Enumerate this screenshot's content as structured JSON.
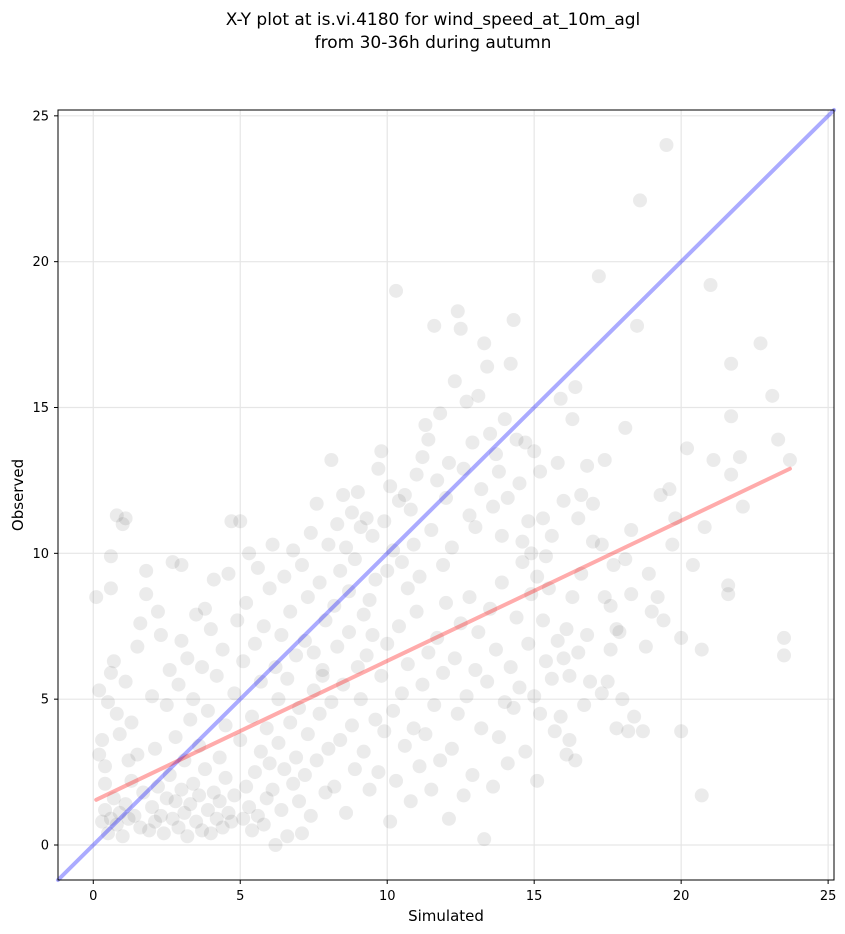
{
  "chart_data": {
    "type": "scatter",
    "title_line1": "X-Y plot at is.vi.4180 for wind_speed_at_10m_agl",
    "title_line2": "from 30-36h during autumn",
    "xlabel": "Simulated",
    "ylabel": "Observed",
    "xlim": [
      -1.2,
      25.2
    ],
    "ylim": [
      -1.2,
      25.2
    ],
    "x_ticks": [
      0,
      5,
      10,
      15,
      20,
      25
    ],
    "y_ticks": [
      0,
      5,
      10,
      15,
      20,
      25
    ],
    "grid": true,
    "point_color": "#000000",
    "point_opacity": 0.08,
    "identity_line": {
      "x": [
        -1.2,
        25.2
      ],
      "y": [
        -1.2,
        25.2
      ],
      "color": "#0000ff"
    },
    "regression_line": {
      "x": [
        0.1,
        23.7
      ],
      "y": [
        1.55,
        12.9
      ],
      "color": "#ff0000"
    },
    "points": [
      [
        0.1,
        8.5
      ],
      [
        0.6,
        9.9
      ],
      [
        0.6,
        8.8
      ],
      [
        0.8,
        11.3
      ],
      [
        1.0,
        11.0
      ],
      [
        1.1,
        11.2
      ],
      [
        0.2,
        5.3
      ],
      [
        0.3,
        3.6
      ],
      [
        0.4,
        2.7
      ],
      [
        0.2,
        3.1
      ],
      [
        0.5,
        4.9
      ],
      [
        0.6,
        5.9
      ],
      [
        0.7,
        6.3
      ],
      [
        0.8,
        4.5
      ],
      [
        0.9,
        3.8
      ],
      [
        0.3,
        0.8
      ],
      [
        0.4,
        1.2
      ],
      [
        0.5,
        0.4
      ],
      [
        0.6,
        0.9
      ],
      [
        0.7,
        1.6
      ],
      [
        0.8,
        0.7
      ],
      [
        0.9,
        1.1
      ],
      [
        1.0,
        0.3
      ],
      [
        1.1,
        1.4
      ],
      [
        1.2,
        0.9
      ],
      [
        1.3,
        2.2
      ],
      [
        1.4,
        1.0
      ],
      [
        1.5,
        3.1
      ],
      [
        1.6,
        0.6
      ],
      [
        1.7,
        1.8
      ],
      [
        1.1,
        5.6
      ],
      [
        1.3,
        4.2
      ],
      [
        1.5,
        6.8
      ],
      [
        1.6,
        7.6
      ],
      [
        1.8,
        9.4
      ],
      [
        1.8,
        8.6
      ],
      [
        2.0,
        5.1
      ],
      [
        2.1,
        3.3
      ],
      [
        2.2,
        8.0
      ],
      [
        2.3,
        7.2
      ],
      [
        1.9,
        0.5
      ],
      [
        2.0,
        1.3
      ],
      [
        2.1,
        0.8
      ],
      [
        2.2,
        2.0
      ],
      [
        2.3,
        1.0
      ],
      [
        2.4,
        0.4
      ],
      [
        2.5,
        1.6
      ],
      [
        2.6,
        2.4
      ],
      [
        2.7,
        0.9
      ],
      [
        2.8,
        1.5
      ],
      [
        2.5,
        4.8
      ],
      [
        2.6,
        6.0
      ],
      [
        2.7,
        9.7
      ],
      [
        2.8,
        3.7
      ],
      [
        2.9,
        5.5
      ],
      [
        3.0,
        7.0
      ],
      [
        3.0,
        9.6
      ],
      [
        3.1,
        2.9
      ],
      [
        3.2,
        6.4
      ],
      [
        3.3,
        4.3
      ],
      [
        2.9,
        0.6
      ],
      [
        3.0,
        1.9
      ],
      [
        3.1,
        1.1
      ],
      [
        3.2,
        0.3
      ],
      [
        3.3,
        1.4
      ],
      [
        3.4,
        2.1
      ],
      [
        3.5,
        0.8
      ],
      [
        3.6,
        1.7
      ],
      [
        3.7,
        0.5
      ],
      [
        3.8,
        2.6
      ],
      [
        3.4,
        5.0
      ],
      [
        3.5,
        7.9
      ],
      [
        3.6,
        3.4
      ],
      [
        3.7,
        6.1
      ],
      [
        3.8,
        8.1
      ],
      [
        3.9,
        4.6
      ],
      [
        4.0,
        7.4
      ],
      [
        4.1,
        9.1
      ],
      [
        4.2,
        5.8
      ],
      [
        4.3,
        3.0
      ],
      [
        3.9,
        1.2
      ],
      [
        4.0,
        0.4
      ],
      [
        4.1,
        1.8
      ],
      [
        4.2,
        0.9
      ],
      [
        4.3,
        1.5
      ],
      [
        4.4,
        0.6
      ],
      [
        4.5,
        2.3
      ],
      [
        4.6,
        1.1
      ],
      [
        4.7,
        0.8
      ],
      [
        4.8,
        1.7
      ],
      [
        4.4,
        6.7
      ],
      [
        4.5,
        4.1
      ],
      [
        4.6,
        9.3
      ],
      [
        4.7,
        11.1
      ],
      [
        4.8,
        5.2
      ],
      [
        4.9,
        7.7
      ],
      [
        5.0,
        11.1
      ],
      [
        5.0,
        3.6
      ],
      [
        5.1,
        6.3
      ],
      [
        5.2,
        8.3
      ],
      [
        5.1,
        0.9
      ],
      [
        5.2,
        2.0
      ],
      [
        5.3,
        1.3
      ],
      [
        5.4,
        0.5
      ],
      [
        5.5,
        2.5
      ],
      [
        5.6,
        1.0
      ],
      [
        5.7,
        3.2
      ],
      [
        5.8,
        0.7
      ],
      [
        5.9,
        1.6
      ],
      [
        6.0,
        2.8
      ],
      [
        5.3,
        10.0
      ],
      [
        5.4,
        4.4
      ],
      [
        5.5,
        6.9
      ],
      [
        5.6,
        9.5
      ],
      [
        5.7,
        5.6
      ],
      [
        5.8,
        7.5
      ],
      [
        5.9,
        4.0
      ],
      [
        6.0,
        8.8
      ],
      [
        6.1,
        10.3
      ],
      [
        6.2,
        6.1
      ],
      [
        6.1,
        1.9
      ],
      [
        6.2,
        0.0
      ],
      [
        6.3,
        3.5
      ],
      [
        6.4,
        1.2
      ],
      [
        6.5,
        2.6
      ],
      [
        6.6,
        0.3
      ],
      [
        6.7,
        4.2
      ],
      [
        6.8,
        2.1
      ],
      [
        6.9,
        3.0
      ],
      [
        7.0,
        1.5
      ],
      [
        6.3,
        5.0
      ],
      [
        6.4,
        7.2
      ],
      [
        6.5,
        9.2
      ],
      [
        6.6,
        5.7
      ],
      [
        6.7,
        8.0
      ],
      [
        6.8,
        10.1
      ],
      [
        6.9,
        6.5
      ],
      [
        7.0,
        4.7
      ],
      [
        7.1,
        9.6
      ],
      [
        7.2,
        7.0
      ],
      [
        7.1,
        0.4
      ],
      [
        7.2,
        2.4
      ],
      [
        7.3,
        3.8
      ],
      [
        7.4,
        1.0
      ],
      [
        7.5,
        5.3
      ],
      [
        7.6,
        2.9
      ],
      [
        7.7,
        4.5
      ],
      [
        7.8,
        6.0
      ],
      [
        7.9,
        1.8
      ],
      [
        8.0,
        3.3
      ],
      [
        7.3,
        8.5
      ],
      [
        7.4,
        10.7
      ],
      [
        7.5,
        6.6
      ],
      [
        7.6,
        11.7
      ],
      [
        7.7,
        9.0
      ],
      [
        7.8,
        5.8
      ],
      [
        7.9,
        7.7
      ],
      [
        8.0,
        10.3
      ],
      [
        8.1,
        13.2
      ],
      [
        8.2,
        8.2
      ],
      [
        8.1,
        4.9
      ],
      [
        8.2,
        2.0
      ],
      [
        8.3,
        6.8
      ],
      [
        8.4,
        3.6
      ],
      [
        8.5,
        5.5
      ],
      [
        8.6,
        1.1
      ],
      [
        8.7,
        7.3
      ],
      [
        8.8,
        4.1
      ],
      [
        8.9,
        2.6
      ],
      [
        9.0,
        6.1
      ],
      [
        8.3,
        11.0
      ],
      [
        8.4,
        9.4
      ],
      [
        8.5,
        12.0
      ],
      [
        8.6,
        10.2
      ],
      [
        8.7,
        8.7
      ],
      [
        8.8,
        11.4
      ],
      [
        8.9,
        9.8
      ],
      [
        9.0,
        12.1
      ],
      [
        9.1,
        10.9
      ],
      [
        9.2,
        7.9
      ],
      [
        9.1,
        5.0
      ],
      [
        9.2,
        3.2
      ],
      [
        9.3,
        6.5
      ],
      [
        9.4,
        1.9
      ],
      [
        9.5,
        7.2
      ],
      [
        9.6,
        4.3
      ],
      [
        9.7,
        2.5
      ],
      [
        9.8,
        5.8
      ],
      [
        9.9,
        3.9
      ],
      [
        10.0,
        6.9
      ],
      [
        9.3,
        11.2
      ],
      [
        9.4,
        8.4
      ],
      [
        9.5,
        10.6
      ],
      [
        9.6,
        9.1
      ],
      [
        9.7,
        12.9
      ],
      [
        9.8,
        13.5
      ],
      [
        9.9,
        11.1
      ],
      [
        10.0,
        9.4
      ],
      [
        10.1,
        12.3
      ],
      [
        10.2,
        10.1
      ],
      [
        10.1,
        0.8
      ],
      [
        10.2,
        4.6
      ],
      [
        10.3,
        2.2
      ],
      [
        10.4,
        7.5
      ],
      [
        10.5,
        5.2
      ],
      [
        10.6,
        3.4
      ],
      [
        10.7,
        6.2
      ],
      [
        10.8,
        1.5
      ],
      [
        10.9,
        4.0
      ],
      [
        11.0,
        8.0
      ],
      [
        10.3,
        19.0
      ],
      [
        10.4,
        11.8
      ],
      [
        10.5,
        9.7
      ],
      [
        10.6,
        12.0
      ],
      [
        10.7,
        8.8
      ],
      [
        10.8,
        11.5
      ],
      [
        10.9,
        10.3
      ],
      [
        11.0,
        12.7
      ],
      [
        11.1,
        9.2
      ],
      [
        11.2,
        13.3
      ],
      [
        11.1,
        2.7
      ],
      [
        11.2,
        5.5
      ],
      [
        11.3,
        3.8
      ],
      [
        11.4,
        6.6
      ],
      [
        11.5,
        1.9
      ],
      [
        11.6,
        4.8
      ],
      [
        11.7,
        7.1
      ],
      [
        11.8,
        2.9
      ],
      [
        11.9,
        5.9
      ],
      [
        12.0,
        8.3
      ],
      [
        11.3,
        14.4
      ],
      [
        11.4,
        13.9
      ],
      [
        11.5,
        10.8
      ],
      [
        11.6,
        17.8
      ],
      [
        11.7,
        12.5
      ],
      [
        11.8,
        14.8
      ],
      [
        11.9,
        9.6
      ],
      [
        12.0,
        11.9
      ],
      [
        12.1,
        13.1
      ],
      [
        12.2,
        10.2
      ],
      [
        12.1,
        0.9
      ],
      [
        12.2,
        3.3
      ],
      [
        12.3,
        6.4
      ],
      [
        12.4,
        4.5
      ],
      [
        12.5,
        7.6
      ],
      [
        12.6,
        1.7
      ],
      [
        12.7,
        5.1
      ],
      [
        12.8,
        8.5
      ],
      [
        12.9,
        2.4
      ],
      [
        13.0,
        6.0
      ],
      [
        12.3,
        15.9
      ],
      [
        12.4,
        18.3
      ],
      [
        12.5,
        17.7
      ],
      [
        12.6,
        12.9
      ],
      [
        12.7,
        15.2
      ],
      [
        12.8,
        11.3
      ],
      [
        12.9,
        13.8
      ],
      [
        13.0,
        10.9
      ],
      [
        13.1,
        15.4
      ],
      [
        13.2,
        12.2
      ],
      [
        13.1,
        7.3
      ],
      [
        13.2,
        4.0
      ],
      [
        13.3,
        0.2
      ],
      [
        13.4,
        5.6
      ],
      [
        13.5,
        8.1
      ],
      [
        13.6,
        2.0
      ],
      [
        13.7,
        6.7
      ],
      [
        13.8,
        3.7
      ],
      [
        13.9,
        9.0
      ],
      [
        14.0,
        4.9
      ],
      [
        13.3,
        17.2
      ],
      [
        13.4,
        16.4
      ],
      [
        13.5,
        14.1
      ],
      [
        13.6,
        11.6
      ],
      [
        13.7,
        13.4
      ],
      [
        13.8,
        12.8
      ],
      [
        13.9,
        10.6
      ],
      [
        14.0,
        14.6
      ],
      [
        14.1,
        11.9
      ],
      [
        14.2,
        16.5
      ],
      [
        14.1,
        2.8
      ],
      [
        14.2,
        6.1
      ],
      [
        14.3,
        4.7
      ],
      [
        14.4,
        7.8
      ],
      [
        14.5,
        5.4
      ],
      [
        14.6,
        9.7
      ],
      [
        14.7,
        3.2
      ],
      [
        14.8,
        6.9
      ],
      [
        14.9,
        8.6
      ],
      [
        15.0,
        5.1
      ],
      [
        14.3,
        18.0
      ],
      [
        14.4,
        13.9
      ],
      [
        14.5,
        12.4
      ],
      [
        14.6,
        10.4
      ],
      [
        14.7,
        13.8
      ],
      [
        14.8,
        11.1
      ],
      [
        14.9,
        10.0
      ],
      [
        15.0,
        13.5
      ],
      [
        15.1,
        9.2
      ],
      [
        15.2,
        12.8
      ],
      [
        15.1,
        2.2
      ],
      [
        15.2,
        4.5
      ],
      [
        15.3,
        7.7
      ],
      [
        15.4,
        6.3
      ],
      [
        15.5,
        8.8
      ],
      [
        15.6,
        5.7
      ],
      [
        15.7,
        3.9
      ],
      [
        15.8,
        7.0
      ],
      [
        15.9,
        4.4
      ],
      [
        16.0,
        6.4
      ],
      [
        15.3,
        11.2
      ],
      [
        15.4,
        9.9
      ],
      [
        15.6,
        10.6
      ],
      [
        15.8,
        13.1
      ],
      [
        15.9,
        15.3
      ],
      [
        16.0,
        11.8
      ],
      [
        16.1,
        7.4
      ],
      [
        16.2,
        3.6
      ],
      [
        16.3,
        14.6
      ],
      [
        16.4,
        15.7
      ],
      [
        16.1,
        3.1
      ],
      [
        16.2,
        5.8
      ],
      [
        16.3,
        8.5
      ],
      [
        16.4,
        2.9
      ],
      [
        16.5,
        6.6
      ],
      [
        16.6,
        9.3
      ],
      [
        16.7,
        4.8
      ],
      [
        16.8,
        7.2
      ],
      [
        16.9,
        5.6
      ],
      [
        17.0,
        10.4
      ],
      [
        16.5,
        11.2
      ],
      [
        16.6,
        12.0
      ],
      [
        16.8,
        13.0
      ],
      [
        17.0,
        11.7
      ],
      [
        17.2,
        19.5
      ],
      [
        17.3,
        10.3
      ],
      [
        17.4,
        13.2
      ],
      [
        17.6,
        8.2
      ],
      [
        17.7,
        9.6
      ],
      [
        17.8,
        7.4
      ],
      [
        17.3,
        5.2
      ],
      [
        17.4,
        8.5
      ],
      [
        17.5,
        5.6
      ],
      [
        17.6,
        6.7
      ],
      [
        17.8,
        4.0
      ],
      [
        17.9,
        7.3
      ],
      [
        18.0,
        5.0
      ],
      [
        18.1,
        9.8
      ],
      [
        18.2,
        3.9
      ],
      [
        18.3,
        8.6
      ],
      [
        18.1,
        14.3
      ],
      [
        18.3,
        10.8
      ],
      [
        18.4,
        4.4
      ],
      [
        18.5,
        17.8
      ],
      [
        18.6,
        22.1
      ],
      [
        18.7,
        3.9
      ],
      [
        18.8,
        6.8
      ],
      [
        18.9,
        9.3
      ],
      [
        19.0,
        8.0
      ],
      [
        19.2,
        8.5
      ],
      [
        19.3,
        12.0
      ],
      [
        19.4,
        7.7
      ],
      [
        19.5,
        24.0
      ],
      [
        19.6,
        12.2
      ],
      [
        19.7,
        10.3
      ],
      [
        19.8,
        11.2
      ],
      [
        20.0,
        7.1
      ],
      [
        20.0,
        3.9
      ],
      [
        20.2,
        13.6
      ],
      [
        20.4,
        9.6
      ],
      [
        20.7,
        1.7
      ],
      [
        20.7,
        6.7
      ],
      [
        20.8,
        10.9
      ],
      [
        21.0,
        19.2
      ],
      [
        21.1,
        13.2
      ],
      [
        21.6,
        8.6
      ],
      [
        21.6,
        8.9
      ],
      [
        21.7,
        12.7
      ],
      [
        21.7,
        14.7
      ],
      [
        21.7,
        16.5
      ],
      [
        22.0,
        13.3
      ],
      [
        22.1,
        11.6
      ],
      [
        22.7,
        17.2
      ],
      [
        23.1,
        15.4
      ],
      [
        23.3,
        13.9
      ],
      [
        23.5,
        6.5
      ],
      [
        23.5,
        7.1
      ],
      [
        23.7,
        13.2
      ],
      [
        0.4,
        2.1
      ],
      [
        1.2,
        2.9
      ]
    ]
  }
}
